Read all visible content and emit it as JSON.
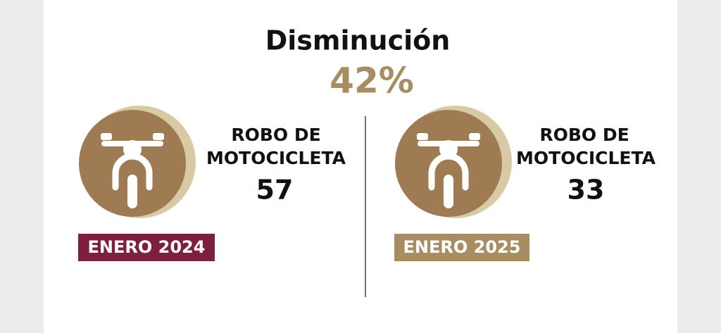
{
  "header": {
    "title": "Disminución",
    "change": "42%"
  },
  "panels": [
    {
      "label_line1": "ROBO DE",
      "label_line2": "MOTOCICLETA",
      "value": "57",
      "period": "ENERO 2024"
    },
    {
      "label_line1": "ROBO DE",
      "label_line2": "MOTOCICLETA",
      "value": "33",
      "period": "ENERO 2025"
    }
  ]
}
